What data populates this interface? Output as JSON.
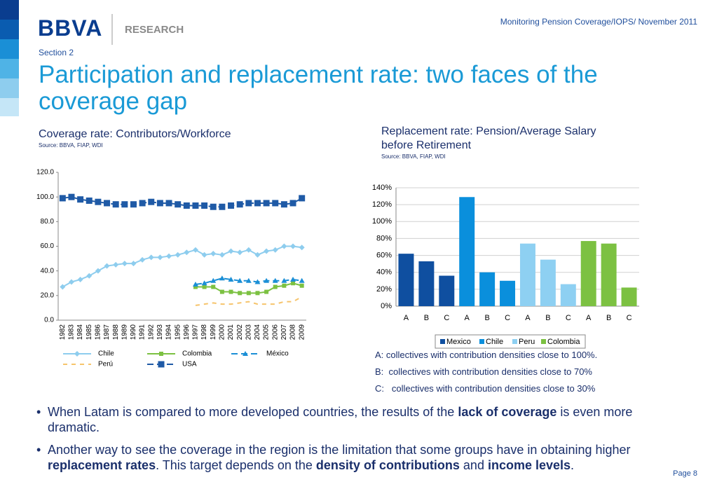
{
  "header": {
    "logo": "BBVA",
    "unit": "RESEARCH",
    "topic": "Monitoring Pension Coverage/IOPS/ November 2011",
    "section": "Section 2",
    "title": "Participation and replacement rate: two faces of the coverage gap"
  },
  "chart_data": [
    {
      "type": "line",
      "title": "Coverage rate: Contributors/Workforce",
      "source": "Source: BBVA, FIAP, WDI",
      "categories": [
        "1982",
        "1983",
        "1984",
        "1985",
        "1986",
        "1987",
        "1988",
        "1989",
        "1990",
        "1991",
        "1992",
        "1993",
        "1994",
        "1995",
        "1996",
        "1997",
        "1998",
        "1999",
        "2000",
        "2001",
        "2002",
        "2003",
        "2004",
        "2005",
        "2006",
        "2007",
        "2008",
        "2009"
      ],
      "ylim": [
        0,
        120
      ],
      "yticks": [
        {
          "value": 0,
          "label": "0.0"
        },
        {
          "value": 20,
          "label": "20.0"
        },
        {
          "value": 40,
          "label": "40.0"
        },
        {
          "value": 60,
          "label": "60.0"
        },
        {
          "value": 80,
          "label": "80.0"
        },
        {
          "value": 100,
          "label": "100.0"
        },
        {
          "value": 120,
          "label": "120.0"
        }
      ],
      "legend": "bottom",
      "series": [
        {
          "name": "Chile",
          "color": "#8ecdee",
          "marker": "diamond",
          "line_style": "solid",
          "values": [
            27,
            31,
            33,
            36,
            40,
            44,
            45,
            46,
            46,
            49,
            51,
            51,
            52,
            53,
            55,
            57,
            53,
            54,
            53,
            56,
            55,
            57,
            53,
            56,
            57,
            60,
            60,
            59
          ]
        },
        {
          "name": "Colombia",
          "color": "#7cc142",
          "marker": "square",
          "line_style": "solid",
          "values": [
            null,
            null,
            null,
            null,
            null,
            null,
            null,
            null,
            null,
            null,
            null,
            null,
            null,
            null,
            null,
            27,
            27,
            27,
            23,
            23,
            22,
            22,
            22,
            23,
            27,
            28,
            30,
            28
          ]
        },
        {
          "name": "México",
          "color": "#1b8fd6",
          "marker": "triangle",
          "line_style": "dashed",
          "values": [
            null,
            null,
            null,
            null,
            null,
            null,
            null,
            null,
            null,
            null,
            null,
            null,
            null,
            null,
            null,
            29,
            30,
            32,
            34,
            33,
            32,
            32,
            31,
            32,
            32,
            32,
            33,
            32
          ]
        },
        {
          "name": "Perú",
          "color": "#f6c46c",
          "marker": "none",
          "line_style": "dashed",
          "values": [
            null,
            null,
            null,
            null,
            null,
            null,
            null,
            null,
            null,
            null,
            null,
            null,
            null,
            null,
            null,
            12,
            13,
            14,
            13,
            13,
            14,
            15,
            13,
            13,
            13,
            15,
            15,
            19
          ]
        },
        {
          "name": "USA",
          "color": "#1f5aa6",
          "marker": "bigsquare",
          "line_style": "dashed",
          "values": [
            99,
            100,
            98,
            97,
            96,
            95,
            94,
            94,
            94,
            95,
            96,
            95,
            95,
            94,
            93,
            93,
            93,
            92,
            92,
            93,
            94,
            95,
            95,
            95,
            95,
            94,
            95,
            99
          ]
        }
      ]
    },
    {
      "type": "bar",
      "title": "Replacement rate: Pension/Average Salary before Retirement",
      "source": "Source: BBVA, FIAP, WDI",
      "categories": [
        "A",
        "B",
        "C",
        "A",
        "B",
        "C",
        "A",
        "B",
        "C",
        "A",
        "B",
        "C"
      ],
      "ylim": [
        0,
        140
      ],
      "yticks": [
        {
          "value": 0,
          "label": "0%"
        },
        {
          "value": 20,
          "label": "20%"
        },
        {
          "value": 40,
          "label": "40%"
        },
        {
          "value": 60,
          "label": "60%"
        },
        {
          "value": 80,
          "label": "80%"
        },
        {
          "value": 100,
          "label": "100%"
        },
        {
          "value": 120,
          "label": "120%"
        },
        {
          "value": 140,
          "label": "140%"
        }
      ],
      "grid": true,
      "legend": "bottom",
      "series": [
        {
          "name": "Mexico",
          "color": "#0f4fa0",
          "values": [
            62,
            53,
            36,
            null,
            null,
            null,
            null,
            null,
            null,
            null,
            null,
            null
          ]
        },
        {
          "name": "Chile",
          "color": "#0a8fdc",
          "values": [
            null,
            null,
            null,
            129,
            40,
            30,
            null,
            null,
            null,
            null,
            null,
            null
          ]
        },
        {
          "name": "Peru",
          "color": "#8ed0f2",
          "values": [
            null,
            null,
            null,
            null,
            null,
            null,
            74,
            55,
            26,
            null,
            null,
            null
          ]
        },
        {
          "name": "Colombia",
          "color": "#7cc142",
          "values": [
            null,
            null,
            null,
            null,
            null,
            null,
            null,
            null,
            null,
            77,
            74,
            22
          ]
        }
      ]
    }
  ],
  "notes": [
    "A: collectives with contribution densities close to 100%.",
    "B:  collectives with contribution densities close to 70%",
    "C:   collectives with contribution densities close to 30%"
  ],
  "bullets": [
    [
      "When Latam is compared to more developed countries, the results of the ",
      "lack of coverage",
      " is even more dramatic."
    ],
    [
      "Another way to see the coverage in the region is the limitation that some groups have in obtaining higher ",
      "replacement rates",
      ". This target depends on the ",
      "density of contributions",
      " and ",
      "income levels",
      "."
    ]
  ],
  "footer": {
    "page": "Page 8"
  }
}
